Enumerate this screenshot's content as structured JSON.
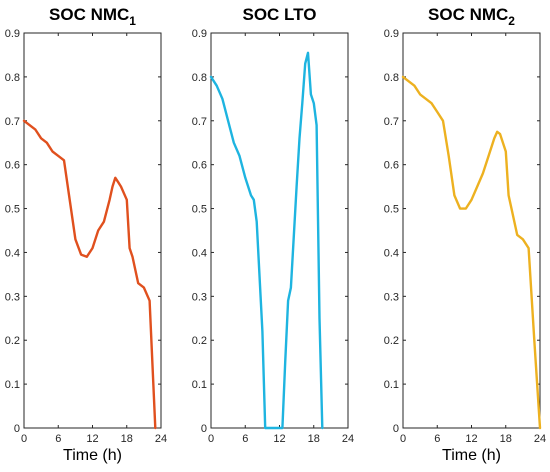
{
  "chart_data": [
    {
      "type": "line",
      "title": "SOC NMC",
      "title_subscript": "1",
      "xlabel": "Time (h)",
      "ylabel": "",
      "xlim": [
        0,
        24
      ],
      "ylim": [
        0,
        0.9
      ],
      "xticks": [
        0,
        6,
        12,
        18,
        24
      ],
      "yticks": [
        0,
        0.1,
        0.2,
        0.3,
        0.4,
        0.5,
        0.6,
        0.7,
        0.8,
        0.9
      ],
      "grid": false,
      "color": "#E0501E",
      "series": [
        {
          "name": "",
          "x": [
            0,
            1,
            2,
            3,
            4,
            5,
            6,
            7,
            8,
            9,
            10,
            11,
            12,
            13,
            14,
            15,
            15.5,
            16,
            16.5,
            17,
            18,
            18.5,
            19,
            20,
            21,
            22,
            23
          ],
          "y": [
            0.7,
            0.69,
            0.68,
            0.66,
            0.65,
            0.63,
            0.62,
            0.61,
            0.52,
            0.43,
            0.395,
            0.39,
            0.41,
            0.45,
            0.47,
            0.52,
            0.55,
            0.57,
            0.56,
            0.55,
            0.52,
            0.41,
            0.39,
            0.33,
            0.32,
            0.29,
            0.0
          ]
        }
      ]
    },
    {
      "type": "line",
      "title": "SOC LTO",
      "title_subscript": "",
      "xlabel": "",
      "ylabel": "",
      "xlim": [
        0,
        24
      ],
      "ylim": [
        0,
        0.9
      ],
      "xticks": [
        0,
        6,
        12,
        18,
        24
      ],
      "yticks": [
        0,
        0.1,
        0.2,
        0.3,
        0.4,
        0.5,
        0.6,
        0.7,
        0.8,
        0.9
      ],
      "grid": false,
      "color": "#1EB4E0",
      "series": [
        {
          "name": "",
          "x": [
            0,
            1,
            2,
            3,
            4,
            5,
            6,
            7,
            7.5,
            8,
            9,
            9.5,
            12.5,
            13,
            13.5,
            14,
            15,
            15.5,
            16,
            16.5,
            17,
            17.5,
            18,
            18.5,
            19,
            19.5
          ],
          "y": [
            0.8,
            0.78,
            0.75,
            0.7,
            0.65,
            0.62,
            0.57,
            0.53,
            0.52,
            0.47,
            0.22,
            0.0,
            0.0,
            0.15,
            0.29,
            0.32,
            0.55,
            0.66,
            0.74,
            0.83,
            0.855,
            0.76,
            0.74,
            0.69,
            0.25,
            0.0
          ]
        }
      ]
    },
    {
      "type": "line",
      "title": "SOC NMC",
      "title_subscript": "2",
      "xlabel": "Time (h)",
      "ylabel": "",
      "xlim": [
        0,
        24
      ],
      "ylim": [
        0,
        0.9
      ],
      "xticks": [
        0,
        6,
        12,
        18,
        24
      ],
      "yticks": [
        0,
        0.1,
        0.2,
        0.3,
        0.4,
        0.5,
        0.6,
        0.7,
        0.8,
        0.9
      ],
      "grid": false,
      "color": "#EDB120",
      "series": [
        {
          "name": "",
          "x": [
            0,
            1,
            2,
            3,
            4,
            5,
            6,
            7,
            8,
            9,
            10,
            11,
            12,
            13,
            14,
            15,
            16,
            16.5,
            17,
            18,
            18.5,
            19,
            20,
            21,
            22,
            23,
            24
          ],
          "y": [
            0.8,
            0.79,
            0.78,
            0.76,
            0.75,
            0.74,
            0.72,
            0.7,
            0.62,
            0.53,
            0.5,
            0.5,
            0.52,
            0.55,
            0.58,
            0.62,
            0.66,
            0.675,
            0.67,
            0.63,
            0.53,
            0.5,
            0.44,
            0.43,
            0.41,
            0.2,
            0.0
          ]
        }
      ]
    }
  ]
}
